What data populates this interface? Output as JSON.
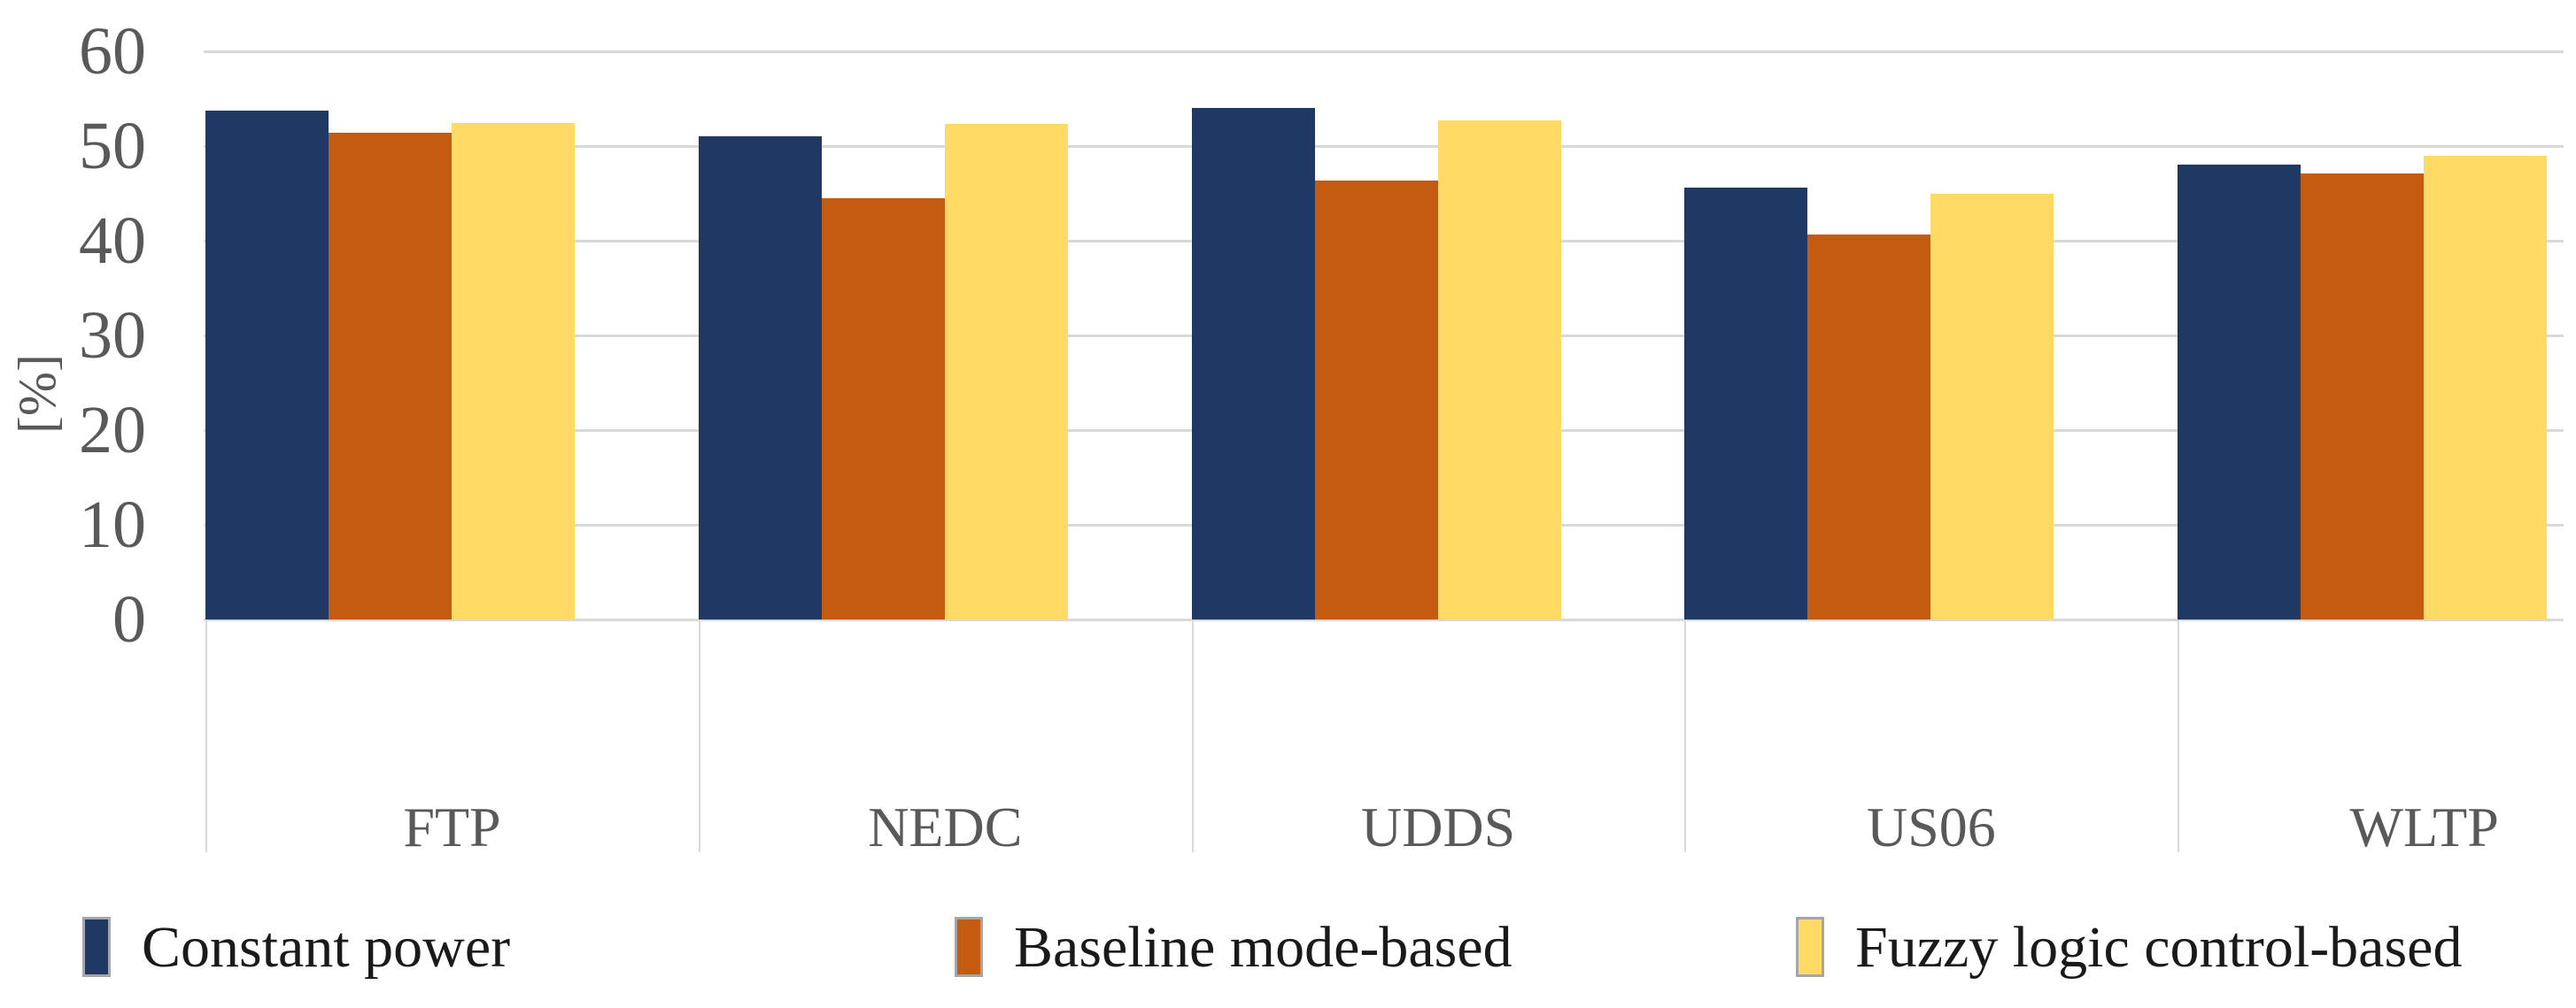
{
  "figure": {
    "background": "#ffffff",
    "axis_text_color": "#595959",
    "grid_color": "#d9d9d9",
    "legend_text_color": "#1a1a1a",
    "swatch_border_color": "#a6a6a6"
  },
  "chart_data": {
    "type": "bar",
    "title": "",
    "xlabel": "",
    "ylabel": "[%]",
    "ylim": [
      0,
      60
    ],
    "yticks": [
      0,
      10,
      20,
      30,
      40,
      50,
      60
    ],
    "grid": true,
    "legend_position": "bottom",
    "categories": [
      "FTP",
      "NEDC",
      "UDDS",
      "US06",
      "WLTP"
    ],
    "series": [
      {
        "name": "Constant power",
        "color": "#1f3864",
        "values": [
          53.7,
          51.0,
          54.0,
          45.6,
          48.0
        ]
      },
      {
        "name": "Baseline mode-based",
        "color": "#c55a11",
        "values": [
          51.4,
          44.5,
          46.4,
          40.7,
          47.1
        ]
      },
      {
        "name": "Fuzzy logic control-based",
        "color": "#ffd966",
        "values": [
          52.4,
          52.3,
          52.7,
          45.0,
          49.0
        ]
      }
    ]
  }
}
